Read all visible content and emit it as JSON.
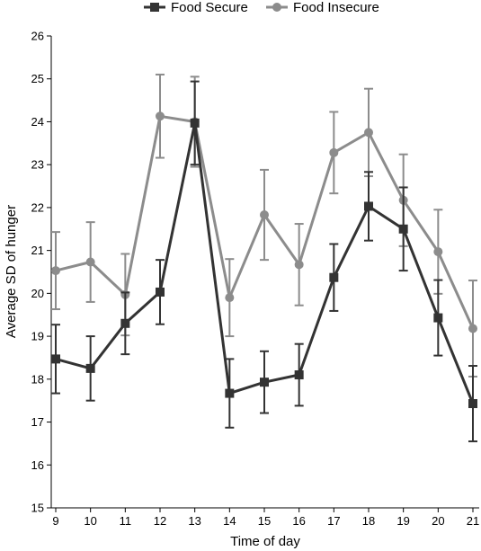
{
  "chart_data": {
    "type": "line",
    "title": "",
    "xlabel": "Time of day",
    "ylabel": "Average SD of hunger",
    "x": [
      9,
      10,
      11,
      12,
      13,
      14,
      15,
      16,
      17,
      18,
      19,
      20,
      21
    ],
    "x_tick_labels": [
      "9",
      "10",
      "11",
      "12",
      "13",
      "14",
      "15",
      "16",
      "17",
      "18",
      "19",
      "20",
      "21"
    ],
    "y_ticks": [
      15,
      16,
      17,
      18,
      19,
      20,
      21,
      22,
      23,
      24,
      25,
      26
    ],
    "y_tick_labels": [
      "15",
      "16",
      "17",
      "18",
      "19",
      "20",
      "21",
      "22",
      "23",
      "24",
      "25",
      "26"
    ],
    "xlim": [
      9,
      21
    ],
    "ylim": [
      15,
      26
    ],
    "grid": false,
    "legend_position": "top-center",
    "series": [
      {
        "name": "Food Secure",
        "color": "#333333",
        "marker": "square",
        "values": [
          18.47,
          18.25,
          19.3,
          20.03,
          23.97,
          17.67,
          17.93,
          18.1,
          20.37,
          22.03,
          21.5,
          19.43,
          17.43
        ],
        "error": [
          0.8,
          0.75,
          0.72,
          0.75,
          0.97,
          0.8,
          0.72,
          0.72,
          0.78,
          0.8,
          0.97,
          0.88,
          0.88
        ]
      },
      {
        "name": "Food Insecure",
        "color": "#8c8c8c",
        "marker": "circle",
        "values": [
          20.53,
          20.73,
          19.97,
          24.13,
          24.0,
          19.9,
          21.83,
          20.67,
          23.28,
          23.75,
          22.17,
          20.97,
          19.18
        ],
        "error": [
          0.9,
          0.93,
          0.95,
          0.97,
          1.05,
          0.9,
          1.05,
          0.95,
          0.95,
          1.02,
          1.07,
          0.98,
          1.12
        ]
      }
    ]
  }
}
